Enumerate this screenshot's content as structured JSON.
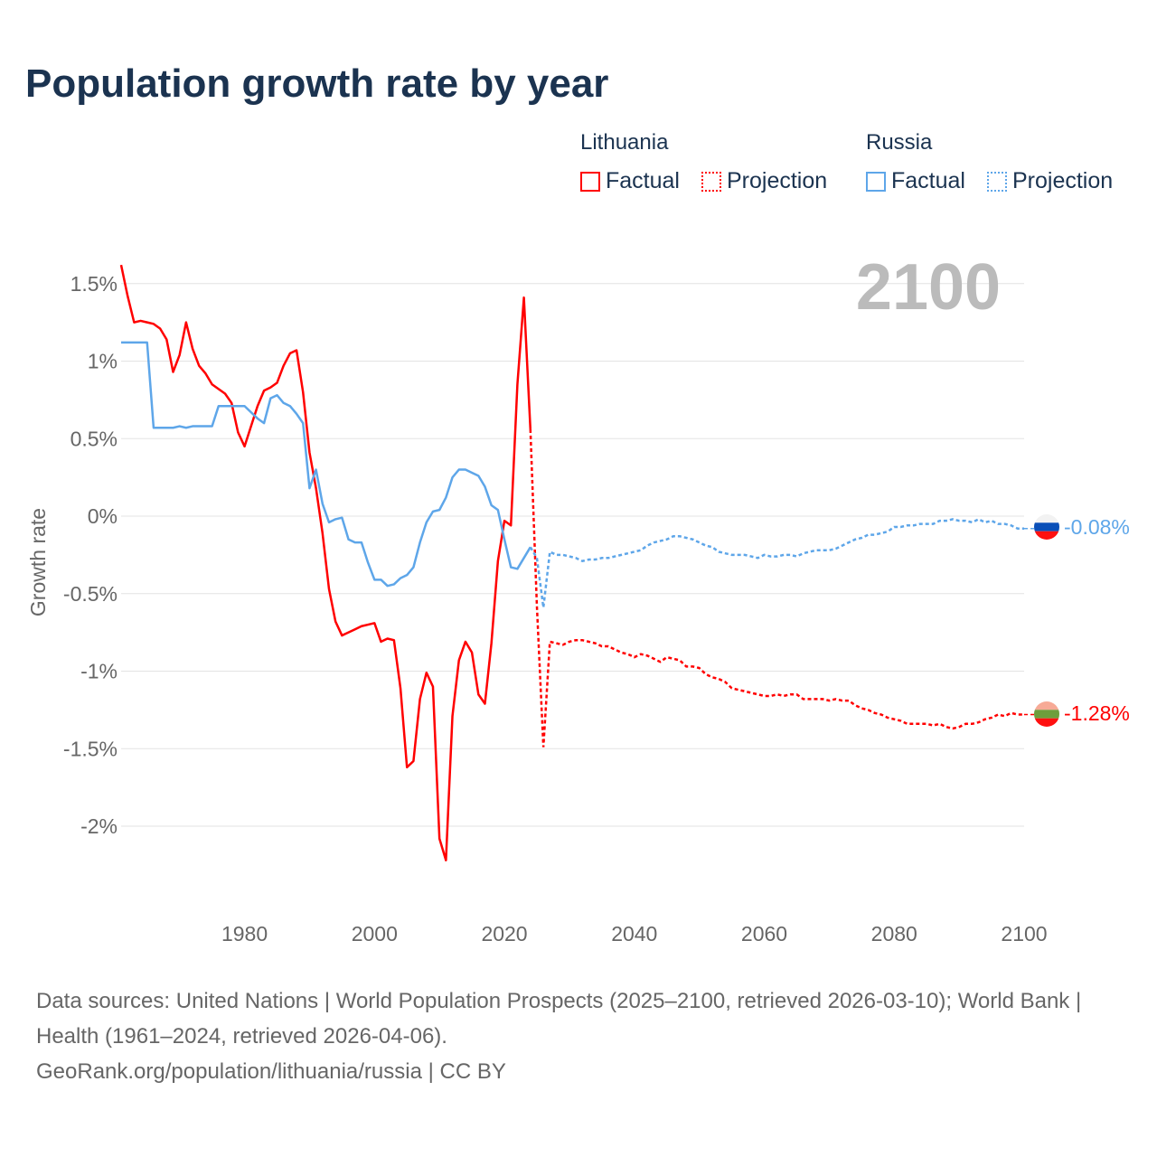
{
  "title": "Population growth rate by year",
  "legend": {
    "groups": [
      {
        "country": "Lithuania",
        "factual": "Factual",
        "projection": "Projection",
        "color": "#ff0000"
      },
      {
        "country": "Russia",
        "factual": "Factual",
        "projection": "Projection",
        "color": "#5ea6e9"
      }
    ]
  },
  "year_display": "2100",
  "footer": {
    "sources": "Data sources: United Nations | World Population Prospects (2025–2100, retrieved 2026-03-10); World Bank | Health (1961–2024, retrieved 2026-04-06).",
    "link": "GeoRank.org/population/lithuania/russia | CC BY"
  },
  "chart_data": {
    "type": "line",
    "title": "Population growth rate by year",
    "xlabel": "",
    "ylabel": "Growth rate",
    "xlim": [
      1961,
      2100
    ],
    "ylim": [
      -2.5,
      1.65
    ],
    "xticks": [
      1980,
      2000,
      2020,
      2040,
      2060,
      2080,
      2100
    ],
    "xtick_labels": [
      "1980",
      "2000",
      "2020",
      "2040",
      "2060",
      "2080",
      "2100"
    ],
    "yticks": [
      1.5,
      1,
      0.5,
      0,
      -0.5,
      -1,
      -1.5,
      -2
    ],
    "ytick_labels": [
      "1.5%",
      "1%",
      "0.5%",
      "0%",
      "-0.5%",
      "-1%",
      "-1.5%",
      "-2%"
    ],
    "grid": true,
    "legend_position": "top-right",
    "series": [
      {
        "name": "Lithuania",
        "color": "#ff0000",
        "end_label": "-1.28%",
        "factual_start": 1961,
        "factual": [
          1.62,
          1.42,
          1.25,
          1.26,
          1.25,
          1.24,
          1.21,
          1.14,
          0.93,
          1.04,
          1.25,
          1.08,
          0.97,
          0.92,
          0.85,
          0.82,
          0.79,
          0.73,
          0.54,
          0.45,
          0.58,
          0.71,
          0.81,
          0.83,
          0.86,
          0.97,
          1.05,
          1.07,
          0.8,
          0.41,
          0.18,
          -0.11,
          -0.47,
          -0.68,
          -0.77,
          -0.75,
          -0.73,
          -0.71,
          -0.7,
          -0.69,
          -0.81,
          -0.79,
          -0.8,
          -1.11,
          -1.62,
          -1.58,
          -1.18,
          -1.01,
          -1.1,
          -2.08,
          -2.22,
          -1.29,
          -0.93,
          -0.81,
          -0.88,
          -1.15,
          -1.21,
          -0.82,
          -0.29,
          -0.03,
          -0.06,
          0.85,
          1.41,
          0.56
        ],
        "projection_start": 2025,
        "projection": [
          -0.58,
          -1.49,
          -0.81,
          -0.82,
          -0.83,
          -0.81,
          -0.8,
          -0.8,
          -0.81,
          -0.82,
          -0.84,
          -0.84,
          -0.86,
          -0.88,
          -0.89,
          -0.91,
          -0.89,
          -0.9,
          -0.92,
          -0.94,
          -0.91,
          -0.92,
          -0.93,
          -0.97,
          -0.97,
          -0.98,
          -1.02,
          -1.04,
          -1.05,
          -1.07,
          -1.11,
          -1.12,
          -1.13,
          -1.14,
          -1.15,
          -1.16,
          -1.16,
          -1.15,
          -1.16,
          -1.15,
          -1.15,
          -1.18,
          -1.18,
          -1.18,
          -1.18,
          -1.19,
          -1.18,
          -1.19,
          -1.19,
          -1.22,
          -1.24,
          -1.25,
          -1.27,
          -1.28,
          -1.3,
          -1.31,
          -1.32,
          -1.34,
          -1.34,
          -1.34,
          -1.34,
          -1.35,
          -1.34,
          -1.36,
          -1.37,
          -1.36,
          -1.34,
          -1.34,
          -1.33,
          -1.31,
          -1.3,
          -1.28,
          -1.29,
          -1.27,
          -1.28,
          -1.28
        ]
      },
      {
        "name": "Russia",
        "color": "#5ea6e9",
        "end_label": "-0.08%",
        "factual_start": 1961,
        "factual": [
          1.12,
          1.12,
          1.12,
          1.12,
          1.12,
          0.57,
          0.57,
          0.57,
          0.57,
          0.58,
          0.57,
          0.58,
          0.58,
          0.58,
          0.58,
          0.71,
          0.71,
          0.71,
          0.71,
          0.71,
          0.67,
          0.63,
          0.6,
          0.76,
          0.78,
          0.73,
          0.71,
          0.66,
          0.6,
          0.18,
          0.3,
          0.08,
          -0.04,
          -0.02,
          -0.01,
          -0.15,
          -0.17,
          -0.17,
          -0.3,
          -0.41,
          -0.41,
          -0.45,
          -0.44,
          -0.4,
          -0.38,
          -0.33,
          -0.17,
          -0.04,
          0.03,
          0.04,
          0.12,
          0.25,
          0.3,
          0.3,
          0.28,
          0.26,
          0.19,
          0.07,
          0.04,
          -0.15,
          -0.33,
          -0.34,
          -0.27,
          -0.2
        ],
        "projection_start": 2025,
        "projection": [
          -0.27,
          -0.59,
          -0.23,
          -0.25,
          -0.25,
          -0.26,
          -0.27,
          -0.29,
          -0.28,
          -0.28,
          -0.27,
          -0.27,
          -0.26,
          -0.25,
          -0.24,
          -0.23,
          -0.22,
          -0.19,
          -0.17,
          -0.16,
          -0.15,
          -0.13,
          -0.13,
          -0.14,
          -0.15,
          -0.17,
          -0.19,
          -0.2,
          -0.23,
          -0.24,
          -0.25,
          -0.25,
          -0.25,
          -0.26,
          -0.27,
          -0.25,
          -0.26,
          -0.26,
          -0.25,
          -0.25,
          -0.26,
          -0.24,
          -0.23,
          -0.22,
          -0.22,
          -0.22,
          -0.21,
          -0.19,
          -0.17,
          -0.15,
          -0.14,
          -0.12,
          -0.12,
          -0.11,
          -0.1,
          -0.07,
          -0.07,
          -0.06,
          -0.06,
          -0.05,
          -0.05,
          -0.05,
          -0.03,
          -0.03,
          -0.02,
          -0.03,
          -0.03,
          -0.04,
          -0.02,
          -0.04,
          -0.03,
          -0.05,
          -0.05,
          -0.06,
          -0.08,
          -0.08
        ]
      }
    ]
  }
}
